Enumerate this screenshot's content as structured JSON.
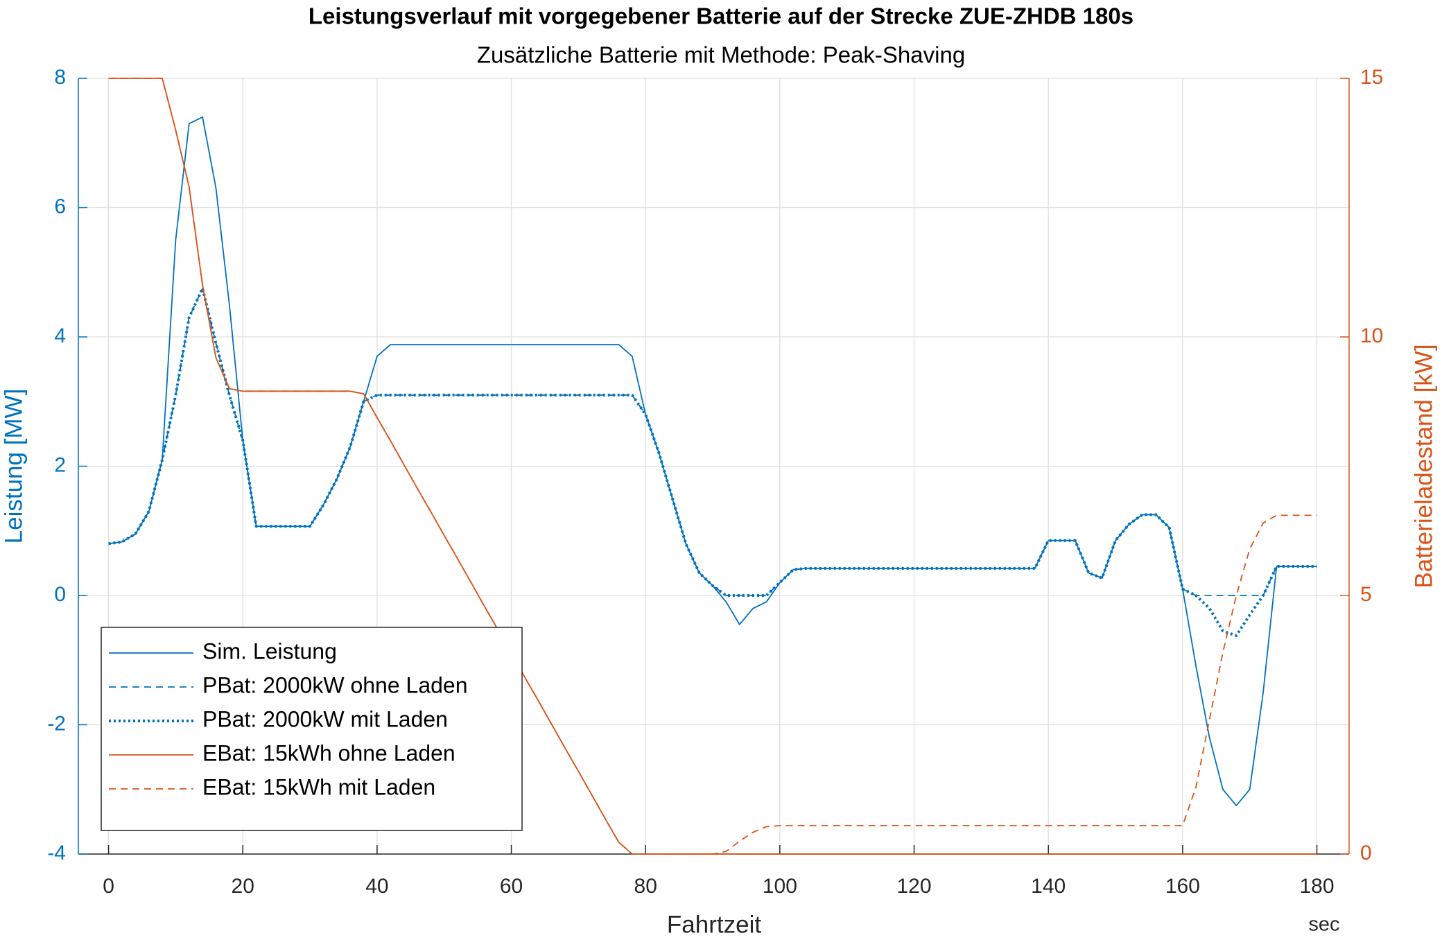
{
  "chart_data": {
    "type": "line",
    "title": "Leistungsverlauf mit vorgegebener Batterie auf der Strecke ZUE-ZHDB 180s",
    "subtitle": "Zusätzliche Batterie mit Methode: Peak-Shaving",
    "xlabel": "Fahrtzeit",
    "xunit": "sec",
    "ylabel": "Leistung [MW]",
    "y2label": "Batterieladestand [kW]",
    "xlim": [
      -4.5,
      184.8
    ],
    "ylim": [
      -4,
      8
    ],
    "y2lim": [
      0,
      15
    ],
    "xticks": [
      0,
      20,
      40,
      60,
      80,
      100,
      120,
      140,
      160,
      180
    ],
    "yticks": [
      -4,
      -2,
      0,
      2,
      4,
      6,
      8
    ],
    "y2ticks": [
      0,
      5,
      10,
      15
    ],
    "grid": true,
    "legend": "lower left",
    "ycolor": "#0072bd",
    "y2color": "#d95319",
    "x": [
      0,
      2,
      4,
      6,
      8,
      10,
      12,
      14,
      16,
      18,
      20,
      22,
      24,
      26,
      28,
      30,
      32,
      34,
      36,
      38,
      40,
      42,
      44,
      46,
      48,
      50,
      52,
      54,
      56,
      58,
      60,
      62,
      64,
      66,
      68,
      70,
      72,
      74,
      76,
      78,
      80,
      82,
      84,
      86,
      88,
      90,
      92,
      94,
      96,
      98,
      100,
      102,
      104,
      106,
      108,
      110,
      112,
      114,
      116,
      118,
      120,
      122,
      124,
      126,
      128,
      130,
      132,
      134,
      136,
      138,
      140,
      142,
      144,
      146,
      148,
      150,
      152,
      154,
      156,
      158,
      160,
      162,
      164,
      166,
      168,
      170,
      172,
      174,
      176,
      178,
      180
    ],
    "series": [
      {
        "name": "Sim. Leistung",
        "color": "#0072bd",
        "style": "solid",
        "axis": "y",
        "values": [
          0.8,
          0.83,
          0.95,
          1.3,
          2.1,
          5.5,
          7.3,
          7.4,
          6.3,
          4.5,
          2.4,
          1.07,
          1.07,
          1.07,
          1.07,
          1.07,
          1.4,
          1.8,
          2.3,
          3.0,
          3.7,
          3.88,
          3.88,
          3.88,
          3.88,
          3.88,
          3.88,
          3.88,
          3.88,
          3.88,
          3.88,
          3.88,
          3.88,
          3.88,
          3.88,
          3.88,
          3.88,
          3.88,
          3.88,
          3.7,
          2.8,
          2.2,
          1.5,
          0.8,
          0.35,
          0.15,
          -0.1,
          -0.45,
          -0.2,
          -0.1,
          0.2,
          0.4,
          0.42,
          0.42,
          0.42,
          0.42,
          0.42,
          0.42,
          0.42,
          0.42,
          0.42,
          0.42,
          0.42,
          0.42,
          0.42,
          0.42,
          0.42,
          0.42,
          0.42,
          0.42,
          0.85,
          0.85,
          0.85,
          0.35,
          0.27,
          0.85,
          1.1,
          1.25,
          1.25,
          1.05,
          0.1,
          -1.1,
          -2.2,
          -3.0,
          -3.25,
          -3.0,
          -1.5,
          0.45,
          0.45,
          0.45,
          0.45
        ]
      },
      {
        "name": "PBat: 2000kW ohne Laden",
        "color": "#0072bd",
        "style": "dashed",
        "axis": "y",
        "values": [
          0.8,
          0.83,
          0.95,
          1.3,
          2.1,
          3.1,
          4.3,
          4.75,
          3.9,
          3.1,
          2.4,
          1.07,
          1.07,
          1.07,
          1.07,
          1.07,
          1.4,
          1.8,
          2.3,
          3.0,
          3.1,
          3.1,
          3.1,
          3.1,
          3.1,
          3.1,
          3.1,
          3.1,
          3.1,
          3.1,
          3.1,
          3.1,
          3.1,
          3.1,
          3.1,
          3.1,
          3.1,
          3.1,
          3.1,
          3.1,
          2.8,
          2.2,
          1.5,
          0.8,
          0.35,
          0.15,
          0,
          0,
          0,
          0,
          0.2,
          0.4,
          0.42,
          0.42,
          0.42,
          0.42,
          0.42,
          0.42,
          0.42,
          0.42,
          0.42,
          0.42,
          0.42,
          0.42,
          0.42,
          0.42,
          0.42,
          0.42,
          0.42,
          0.42,
          0.85,
          0.85,
          0.85,
          0.35,
          0.27,
          0.85,
          1.1,
          1.25,
          1.25,
          1.05,
          0.1,
          0,
          0,
          0,
          0,
          0,
          0,
          0.45,
          0.45,
          0.45,
          0.45
        ]
      },
      {
        "name": "PBat: 2000kW mit Laden",
        "color": "#0072bd",
        "style": "dotted",
        "axis": "y",
        "values": [
          0.8,
          0.83,
          0.95,
          1.3,
          2.1,
          3.1,
          4.3,
          4.75,
          3.9,
          3.1,
          2.4,
          1.07,
          1.07,
          1.07,
          1.07,
          1.07,
          1.4,
          1.8,
          2.3,
          3.0,
          3.1,
          3.1,
          3.1,
          3.1,
          3.1,
          3.1,
          3.1,
          3.1,
          3.1,
          3.1,
          3.1,
          3.1,
          3.1,
          3.1,
          3.1,
          3.1,
          3.1,
          3.1,
          3.1,
          3.1,
          2.8,
          2.2,
          1.5,
          0.8,
          0.35,
          0.15,
          0,
          0,
          0,
          0,
          0.2,
          0.4,
          0.42,
          0.42,
          0.42,
          0.42,
          0.42,
          0.42,
          0.42,
          0.42,
          0.42,
          0.42,
          0.42,
          0.42,
          0.42,
          0.42,
          0.42,
          0.42,
          0.42,
          0.42,
          0.85,
          0.85,
          0.85,
          0.35,
          0.27,
          0.85,
          1.1,
          1.25,
          1.25,
          1.05,
          0.1,
          0,
          -0.2,
          -0.55,
          -0.62,
          -0.3,
          0,
          0.45,
          0.45,
          0.45,
          0.45
        ]
      },
      {
        "name": "EBat: 15kWh ohne Laden",
        "color": "#d95319",
        "style": "solid",
        "axis": "y2",
        "values": [
          15,
          15,
          15,
          15,
          15,
          14.0,
          12.9,
          11.0,
          9.6,
          9.0,
          8.95,
          8.95,
          8.95,
          8.95,
          8.95,
          8.95,
          8.95,
          8.95,
          8.95,
          8.9,
          8.44,
          7.99,
          7.53,
          7.07,
          6.62,
          6.16,
          5.71,
          5.25,
          4.79,
          4.34,
          3.88,
          3.42,
          2.97,
          2.51,
          2.05,
          1.6,
          1.14,
          0.68,
          0.23,
          0,
          0,
          0,
          0,
          0,
          0,
          0,
          0,
          0,
          0,
          0,
          0,
          0,
          0,
          0,
          0,
          0,
          0,
          0,
          0,
          0,
          0,
          0,
          0,
          0,
          0,
          0,
          0,
          0,
          0,
          0,
          0,
          0,
          0,
          0,
          0,
          0,
          0,
          0,
          0,
          0,
          0,
          0,
          0,
          0,
          0,
          0,
          0,
          0,
          0,
          0,
          0
        ]
      },
      {
        "name": "EBat: 15kWh mit Laden",
        "color": "#d95319",
        "style": "dashed",
        "axis": "y2",
        "values": [
          15,
          15,
          15,
          15,
          15,
          14.0,
          12.9,
          11.0,
          9.6,
          9.0,
          8.95,
          8.95,
          8.95,
          8.95,
          8.95,
          8.95,
          8.95,
          8.95,
          8.95,
          8.9,
          8.44,
          7.99,
          7.53,
          7.07,
          6.62,
          6.16,
          5.71,
          5.25,
          4.79,
          4.34,
          3.88,
          3.42,
          2.97,
          2.51,
          2.05,
          1.6,
          1.14,
          0.68,
          0.23,
          0,
          0,
          0,
          0,
          0,
          0,
          0,
          0.05,
          0.25,
          0.42,
          0.53,
          0.55,
          0.55,
          0.55,
          0.55,
          0.55,
          0.55,
          0.55,
          0.55,
          0.55,
          0.55,
          0.55,
          0.55,
          0.55,
          0.55,
          0.55,
          0.55,
          0.55,
          0.55,
          0.55,
          0.55,
          0.55,
          0.55,
          0.55,
          0.55,
          0.55,
          0.55,
          0.55,
          0.55,
          0.55,
          0.55,
          0.55,
          1.3,
          2.6,
          3.9,
          5.0,
          5.9,
          6.4,
          6.55,
          6.55,
          6.55,
          6.55
        ]
      }
    ]
  }
}
